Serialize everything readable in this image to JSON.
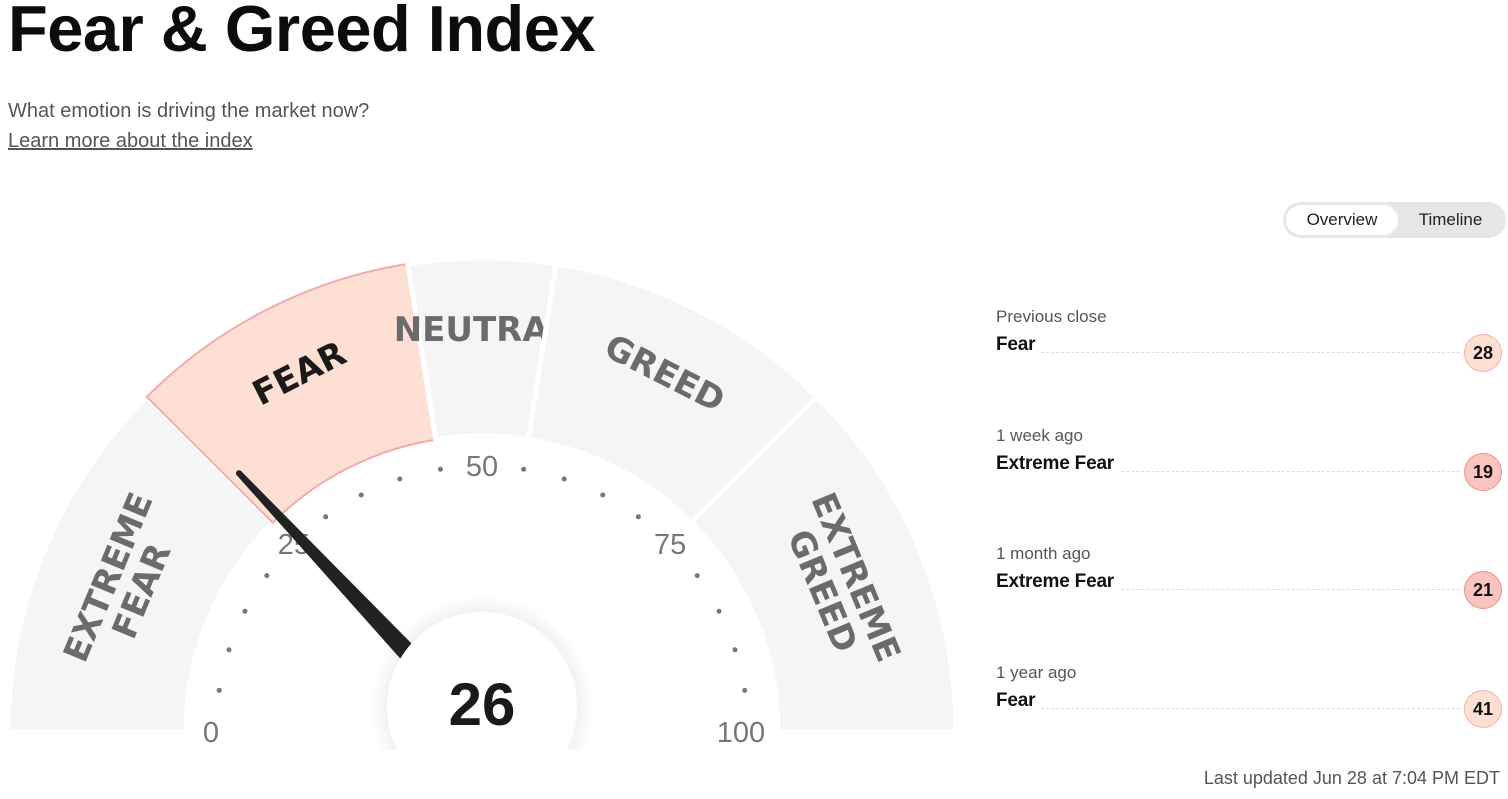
{
  "header": {
    "title": "Fear & Greed Index",
    "subtitle": "What emotion is driving the market now?",
    "learn_more": "Learn more about the index"
  },
  "tabs": [
    {
      "label": "Overview",
      "active": true
    },
    {
      "label": "Timeline",
      "active": false
    }
  ],
  "gauge": {
    "value": 26,
    "value_text": "26",
    "current_rating": "Fear",
    "segments": [
      {
        "label": "EXTREME FEAR",
        "from": 0,
        "to": 25
      },
      {
        "label": "FEAR",
        "from": 25,
        "to": 45
      },
      {
        "label": "NEUTRAL",
        "from": 45,
        "to": 55
      },
      {
        "label": "GREED",
        "from": 55,
        "to": 75
      },
      {
        "label": "EXTREME GREED",
        "from": 75,
        "to": 100
      }
    ],
    "scale_labels": [
      "0",
      "25",
      "50",
      "75",
      "100"
    ],
    "colors": {
      "segment": "#f5f5f5",
      "active_segment": "#fddfd4",
      "active_border": "#f4a9ad",
      "segment_text": "#6b6b6b",
      "active_text": "#1a1a1a",
      "needle": "#222222",
      "ticks": "#777777"
    }
  },
  "history": [
    {
      "label": "Previous close",
      "status": "Fear",
      "value": "28",
      "bg": "#fddfd4",
      "border": "#f4b0aa"
    },
    {
      "label": "1 week ago",
      "status": "Extreme Fear",
      "value": "19",
      "bg": "#fbc4bf",
      "border": "#ee8f88"
    },
    {
      "label": "1 month ago",
      "status": "Extreme Fear",
      "value": "21",
      "bg": "#fbc4bf",
      "border": "#ee8f88"
    },
    {
      "label": "1 year ago",
      "status": "Fear",
      "value": "41",
      "bg": "#fddfd4",
      "border": "#f4b0aa"
    }
  ],
  "footer": {
    "last_updated": "Last updated Jun 28 at 7:04 PM EDT"
  }
}
